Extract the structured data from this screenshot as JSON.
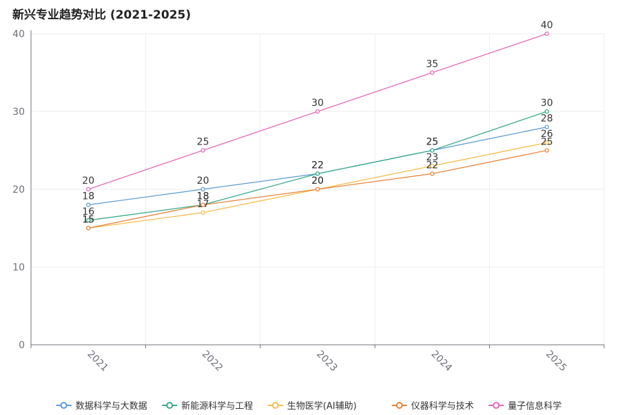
{
  "chart_data": {
    "type": "line",
    "title": "新兴专业趋势对比 (2021-2025)",
    "xlabel": "",
    "ylabel": "",
    "categories": [
      "2021",
      "2022",
      "2023",
      "2024",
      "2025"
    ],
    "ylim": [
      0,
      40
    ],
    "yticks": [
      0,
      10,
      20,
      30,
      40
    ],
    "grid": true,
    "legend_position": "bottom",
    "series": [
      {
        "name": "数据科学与大数据",
        "color": "#5b9bd5",
        "values": [
          18,
          20,
          22,
          25,
          28
        ]
      },
      {
        "name": "新能源科学与工程",
        "color": "#3aa88a",
        "values": [
          16,
          18,
          22,
          25,
          30
        ]
      },
      {
        "name": "生物医学(AI辅助)",
        "color": "#f5bd4f",
        "values": [
          15,
          17,
          20,
          23,
          26
        ]
      },
      {
        "name": "仪器科学与技术",
        "color": "#e8823a",
        "values": [
          15,
          18,
          20,
          22,
          25
        ]
      },
      {
        "name": "量子信息科学",
        "color": "#e368b8",
        "values": [
          20,
          25,
          30,
          35,
          40
        ]
      }
    ]
  }
}
